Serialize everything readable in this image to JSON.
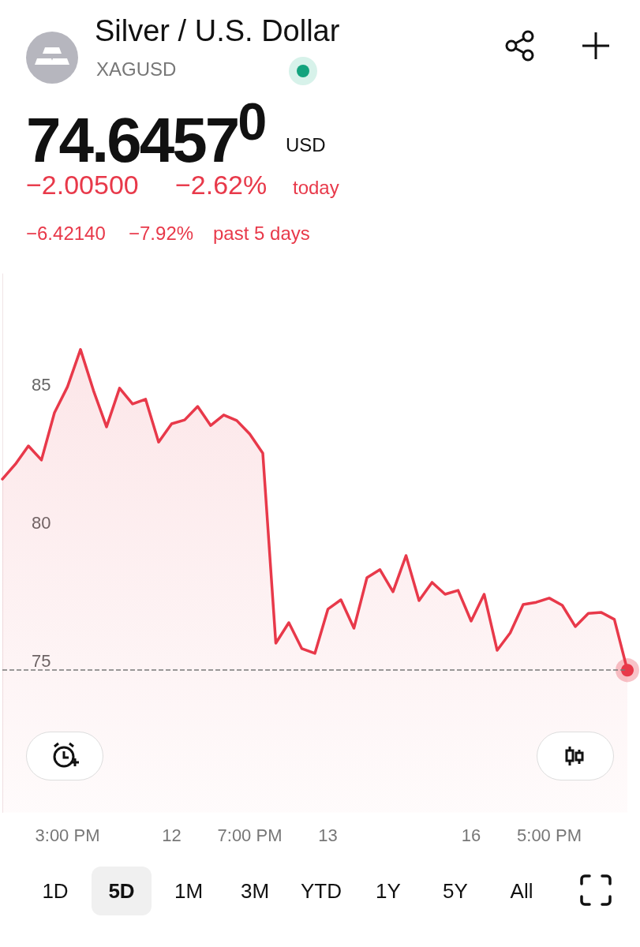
{
  "chart_data": {
    "type": "area",
    "title": "Silver / U.S. Dollar",
    "subtitle": "XAGUSD",
    "categories": [
      null,
      null,
      null,
      null,
      null,
      "3:00 PM",
      null,
      null,
      null,
      null,
      null,
      null,
      null,
      "12",
      null,
      null,
      null,
      null,
      null,
      "7:00 PM",
      null,
      null,
      null,
      null,
      null,
      "13",
      null,
      null,
      null,
      null,
      null,
      null,
      null,
      null,
      null,
      null,
      "16",
      null,
      null,
      null,
      null,
      null,
      "5:00 PM",
      null,
      null,
      null,
      null,
      null,
      null
    ],
    "series": [
      {
        "color": "#e8394a",
        "values": [
          81.57,
          82.11,
          82.77,
          82.26,
          83.97,
          84.91,
          86.26,
          84.77,
          83.46,
          84.86,
          84.29,
          84.46,
          82.91,
          83.57,
          83.71,
          84.2,
          83.51,
          83.89,
          83.69,
          83.2,
          82.51,
          75.63,
          76.37,
          75.43,
          75.26,
          76.86,
          77.2,
          76.17,
          78.0,
          78.29,
          77.49,
          78.8,
          77.17,
          77.83,
          77.4,
          77.54,
          76.43,
          77.4,
          75.37,
          76.0,
          77.03,
          77.11,
          77.26,
          77.0,
          76.23,
          76.71,
          76.74,
          76.49,
          74.65
        ]
      }
    ],
    "ylim": [
      69.5,
      89
    ],
    "yticks": [
      75,
      80,
      85
    ],
    "grid": false,
    "marker": "none",
    "line_style": "solid",
    "ref_lines": [
      {
        "axis": "y",
        "value": 74.65,
        "color": "#787878",
        "line_style": "dashed"
      }
    ],
    "annotations": [
      "74.6457$^{0}$",
      "USD",
      "−2.00500",
      "−2.62%",
      "today",
      "−6.42140",
      "−7.92%",
      "past 5 days",
      "1D",
      "5D",
      "1M",
      "3M",
      "YTD",
      "1Y",
      "5Y",
      "All"
    ]
  }
}
